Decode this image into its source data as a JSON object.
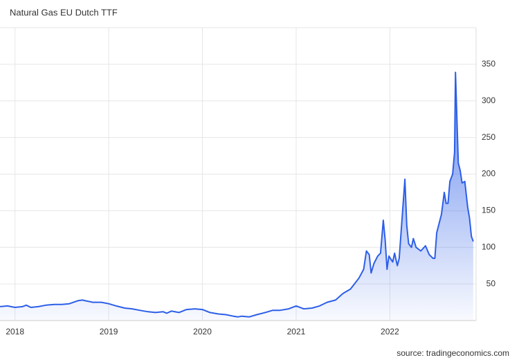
{
  "chart_data": {
    "type": "area",
    "title": "Natural Gas EU Dutch TTF",
    "source": "source: tradingeconomics.com",
    "color": "#2c5ee8",
    "grid": true,
    "xlim": [
      2017.84,
      2022.92
    ],
    "xticks": [
      2018,
      2019,
      2020,
      2021,
      2022
    ],
    "ylim": [
      0,
      400
    ],
    "yticks": [
      50,
      100,
      150,
      200,
      250,
      300,
      350
    ],
    "series": [
      {
        "name": "Natural Gas EU Dutch TTF",
        "color": "#2c5ee8",
        "x": [
          2017.84,
          2017.92,
          2018.0,
          2018.08,
          2018.12,
          2018.17,
          2018.25,
          2018.33,
          2018.42,
          2018.5,
          2018.58,
          2018.67,
          2018.72,
          2018.75,
          2018.83,
          2018.92,
          2019.0,
          2019.08,
          2019.17,
          2019.25,
          2019.33,
          2019.42,
          2019.5,
          2019.58,
          2019.62,
          2019.67,
          2019.75,
          2019.83,
          2019.92,
          2020.0,
          2020.08,
          2020.17,
          2020.25,
          2020.33,
          2020.38,
          2020.42,
          2020.5,
          2020.58,
          2020.67,
          2020.75,
          2020.83,
          2020.92,
          2021.0,
          2021.08,
          2021.17,
          2021.25,
          2021.33,
          2021.42,
          2021.5,
          2021.58,
          2021.67,
          2021.72,
          2021.75,
          2021.78,
          2021.8,
          2021.83,
          2021.87,
          2021.9,
          2021.93,
          2021.95,
          2021.97,
          2021.99,
          2022.03,
          2022.05,
          2022.08,
          2022.1,
          2022.16,
          2022.18,
          2022.2,
          2022.23,
          2022.25,
          2022.28,
          2022.33,
          2022.38,
          2022.42,
          2022.46,
          2022.48,
          2022.5,
          2022.55,
          2022.58,
          2022.6,
          2022.62,
          2022.64,
          2022.67,
          2022.69,
          2022.7,
          2022.73,
          2022.75,
          2022.77,
          2022.8,
          2022.83,
          2022.85,
          2022.87,
          2022.89
        ],
        "values": [
          19,
          20,
          18,
          19,
          21,
          18,
          19,
          21,
          22,
          22,
          23,
          27,
          28,
          27,
          25,
          25,
          23,
          20,
          17,
          16,
          14,
          12,
          11,
          12,
          10,
          13,
          11,
          15,
          16,
          15,
          11,
          9,
          8,
          6,
          5,
          6,
          5,
          8,
          11,
          14,
          14,
          16,
          20,
          16,
          17,
          20,
          25,
          28,
          37,
          43,
          58,
          70,
          95,
          90,
          65,
          78,
          88,
          92,
          137,
          110,
          70,
          88,
          80,
          92,
          75,
          85,
          193,
          130,
          105,
          100,
          112,
          100,
          95,
          102,
          90,
          85,
          85,
          120,
          145,
          175,
          160,
          160,
          190,
          200,
          230,
          339,
          215,
          205,
          188,
          190,
          155,
          140,
          115,
          108
        ]
      }
    ]
  }
}
